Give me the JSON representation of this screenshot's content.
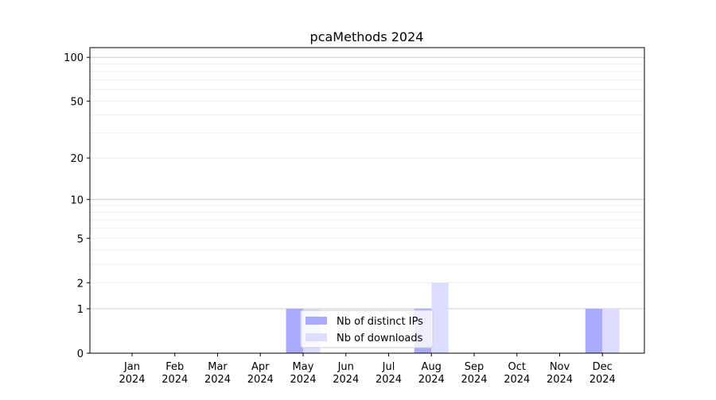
{
  "chart_data": {
    "type": "bar",
    "title": "pcaMethods 2024",
    "xlabel": "",
    "ylabel": "",
    "categories": [
      "Jan\n2024",
      "Feb\n2024",
      "Mar\n2024",
      "Apr\n2024",
      "May\n2024",
      "Jun\n2024",
      "Jul\n2024",
      "Aug\n2024",
      "Sep\n2024",
      "Oct\n2024",
      "Nov\n2024",
      "Dec\n2024"
    ],
    "series": [
      {
        "name": "Nb of distinct IPs",
        "color": "#aaaaff",
        "values": [
          0,
          0,
          0,
          0,
          1,
          0,
          0,
          1,
          0,
          0,
          0,
          1
        ]
      },
      {
        "name": "Nb of downloads",
        "color": "#ddddff",
        "values": [
          0,
          0,
          0,
          0,
          1,
          0,
          0,
          2,
          0,
          0,
          0,
          1
        ]
      }
    ],
    "yscale": "symlog",
    "ylim": [
      0,
      116
    ],
    "yticks": [
      0,
      1,
      2,
      5,
      10,
      20,
      50,
      100
    ],
    "grid": true,
    "legend": "bottom-center"
  }
}
